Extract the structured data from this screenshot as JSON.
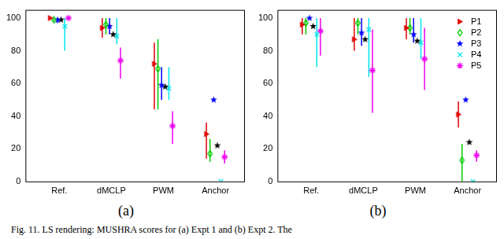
{
  "chart_data": [
    {
      "type": "scatter",
      "title": "(a)",
      "categories": [
        "Ref.",
        "dMCLP",
        "PWM",
        "Anchor"
      ],
      "ylim": [
        0,
        105
      ],
      "yticks": [
        0,
        20,
        40,
        60,
        80,
        100
      ],
      "grid": false,
      "series": [
        {
          "name": "P1",
          "color": "#e00000",
          "marker": "triangle-right",
          "values": [
            100,
            94,
            72,
            29
          ],
          "error_bars": [
            null,
            [
              88,
              100
            ],
            [
              44,
              85
            ],
            [
              14,
              36
            ]
          ]
        },
        {
          "name": "P2",
          "color": "#00cc00",
          "marker": "diamond",
          "values": [
            99,
            96,
            69,
            17
          ],
          "error_bars": [
            [
              98,
              100
            ],
            [
              90,
              100
            ],
            [
              44,
              87
            ],
            [
              12,
              26
            ]
          ]
        },
        {
          "name": "P3",
          "color": "#0000ff",
          "marker": "pentagram",
          "values": [
            99,
            95,
            59,
            50
          ],
          "error_bars": [
            [
              97,
              100
            ],
            [
              90,
              100
            ],
            [
              50,
              70
            ],
            null
          ]
        },
        {
          "color": "#000000",
          "marker": "pentagram",
          "values": [
            99,
            90,
            58,
            22
          ]
        },
        {
          "name": "P4",
          "color": "#00e5ee",
          "marker": "cross",
          "values": [
            95,
            89,
            57,
            0
          ],
          "error_bars": [
            [
              80,
              100
            ],
            [
              84,
              100
            ],
            [
              50,
              70
            ],
            null
          ]
        },
        {
          "name": "P5",
          "color": "#ee00ee",
          "marker": "asterisk",
          "values": [
            100,
            74,
            34,
            15
          ],
          "error_bars": [
            null,
            [
              63,
              82
            ],
            [
              23,
              43
            ],
            [
              11,
              19
            ]
          ]
        }
      ]
    },
    {
      "type": "scatter",
      "title": "(b)",
      "categories": [
        "Ref.",
        "dMCLP",
        "PWM",
        "Anchor"
      ],
      "ylim": [
        0,
        105
      ],
      "yticks": [
        0,
        20,
        40,
        60,
        80,
        100
      ],
      "grid": false,
      "legend": "upper right",
      "series": [
        {
          "name": "P1",
          "color": "#e00000",
          "marker": "triangle-right",
          "values": [
            96,
            87,
            94,
            41
          ],
          "error_bars": [
            [
              90,
              100
            ],
            [
              80,
              100
            ],
            [
              87,
              100
            ],
            [
              33,
              49
            ]
          ]
        },
        {
          "name": "P2",
          "color": "#00cc00",
          "marker": "diamond",
          "values": [
            97,
            97,
            94,
            13
          ],
          "error_bars": [
            [
              90,
              100
            ],
            [
              90,
              100
            ],
            [
              90,
              100
            ],
            [
              0,
              23
            ]
          ]
        },
        {
          "name": "P3",
          "color": "#0000ff",
          "marker": "pentagram",
          "values": [
            100,
            91,
            90,
            50
          ],
          "error_bars": [
            null,
            [
              83,
              100
            ],
            [
              85,
              100
            ],
            null
          ]
        },
        {
          "color": "#000000",
          "marker": "pentagram",
          "values": [
            95,
            87,
            86,
            24
          ]
        },
        {
          "name": "P4",
          "color": "#00e5ee",
          "marker": "cross",
          "values": [
            90,
            93,
            85,
            0
          ],
          "error_bars": [
            [
              70,
              100
            ],
            [
              64,
              100
            ],
            [
              75,
              100
            ],
            null
          ]
        },
        {
          "name": "P5",
          "color": "#ee00ee",
          "marker": "asterisk",
          "values": [
            92,
            68,
            75,
            16
          ],
          "error_bars": [
            [
              77,
              100
            ],
            [
              42,
              93
            ],
            [
              56,
              94
            ],
            [
              12,
              19
            ]
          ]
        }
      ]
    }
  ],
  "caption": "Fig. 11. LS rendering: MUSHRA scores for (a) Expt 1 and (b) Expt 2. The"
}
